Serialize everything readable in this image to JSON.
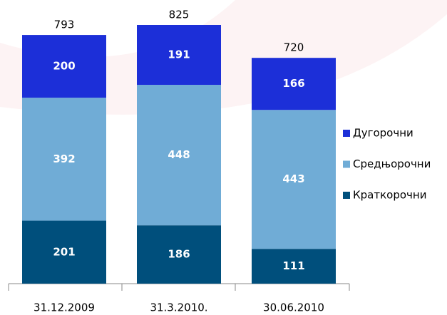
{
  "chart_data": {
    "type": "stacked_bar",
    "categories": [
      "31.12.2009",
      "31.3.2010.",
      "30.06.2010"
    ],
    "series": [
      {
        "name": "Краткорочни",
        "color": "#004f7c",
        "values": [
          201,
          186,
          111
        ]
      },
      {
        "name": "Средњорочни",
        "color": "#70acd6",
        "values": [
          392,
          448,
          443
        ]
      },
      {
        "name": "Дугорочни",
        "color": "#1c2fd8",
        "values": [
          200,
          191,
          166
        ]
      }
    ],
    "totals": [
      793,
      825,
      720
    ]
  }
}
